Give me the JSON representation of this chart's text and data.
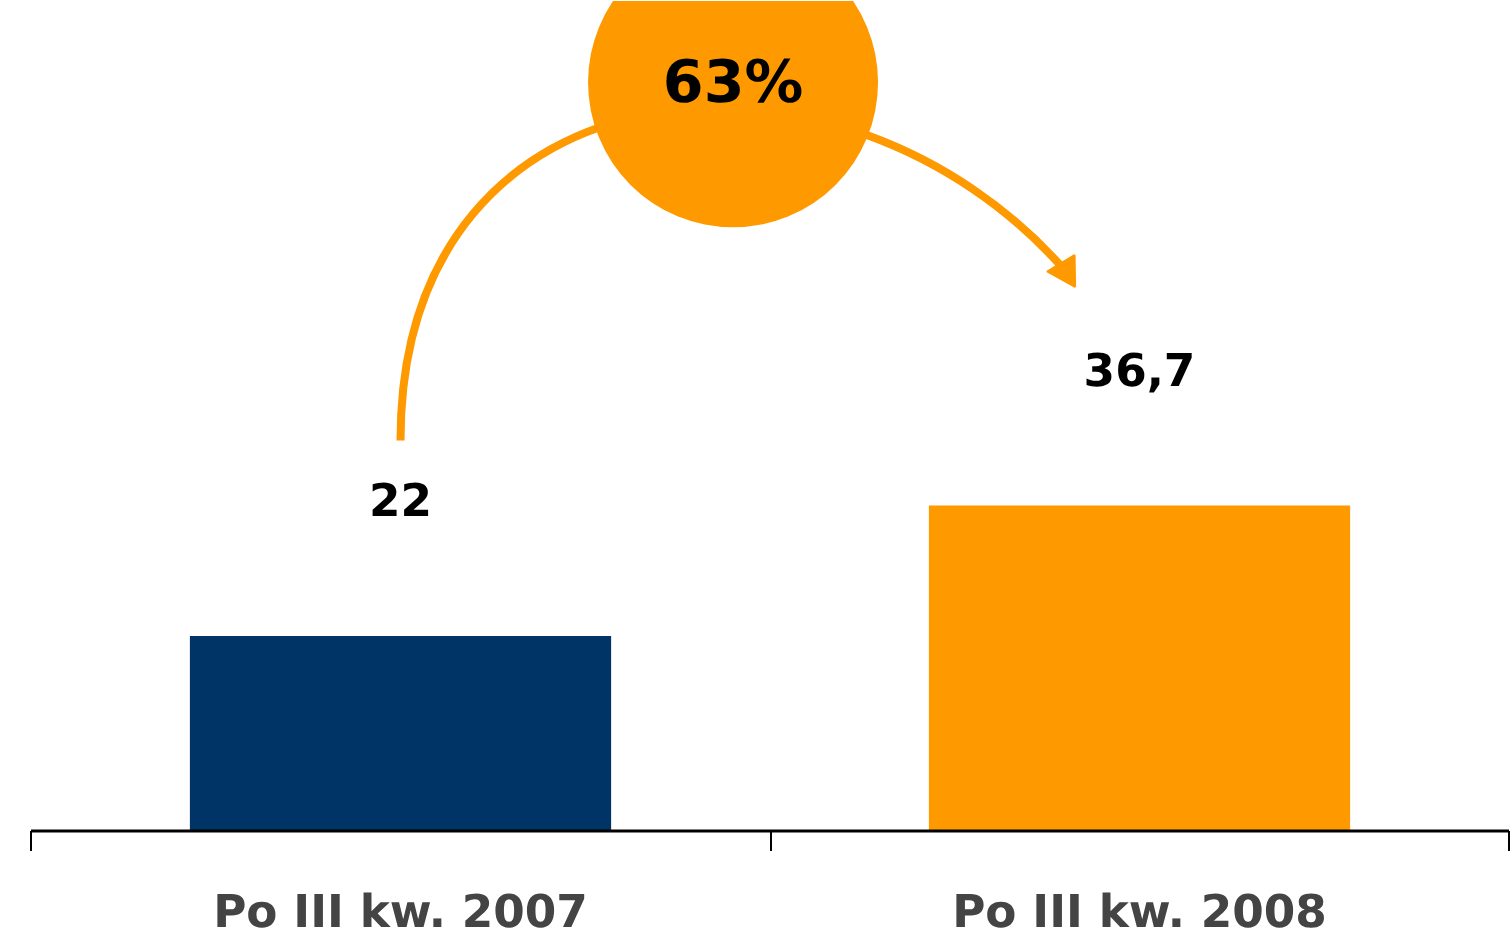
{
  "chart_data": {
    "type": "bar",
    "categories": [
      "Po III kw. 2007",
      "Po III kw. 2008"
    ],
    "values": [
      22,
      36.7
    ],
    "colors": [
      "#003366",
      "#ff9900"
    ],
    "value_labels": [
      "22",
      "36,7"
    ],
    "annotations": [
      "63%"
    ]
  }
}
